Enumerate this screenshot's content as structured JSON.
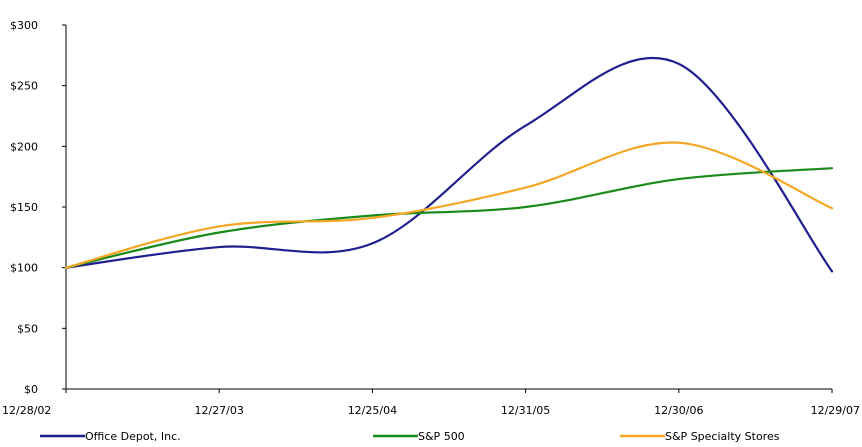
{
  "chart_data": {
    "type": "line",
    "title": "",
    "xlabel": "",
    "ylabel": "",
    "categories": [
      "12/28/02",
      "12/27/03",
      "12/25/04",
      "12/31/05",
      "12/30/06",
      "12/29/07"
    ],
    "y_ticks": [
      "$0",
      "$50",
      "$100",
      "$150",
      "$200",
      "$250",
      "$300"
    ],
    "ylim": [
      0,
      300
    ],
    "grid": false,
    "legend_position": "bottom",
    "series": [
      {
        "name": "Office Depot, Inc.",
        "color": "#1f1f8f",
        "values": [
          100,
          117,
          120,
          217,
          268,
          97
        ]
      },
      {
        "name": "S&P 500",
        "color": "#1a8a1a",
        "values": [
          100,
          129,
          143,
          150,
          173,
          182
        ]
      },
      {
        "name": "S&P Specialty Stores",
        "color": "#f5a623",
        "values": [
          100,
          134,
          141,
          166,
          203,
          149
        ]
      }
    ]
  }
}
